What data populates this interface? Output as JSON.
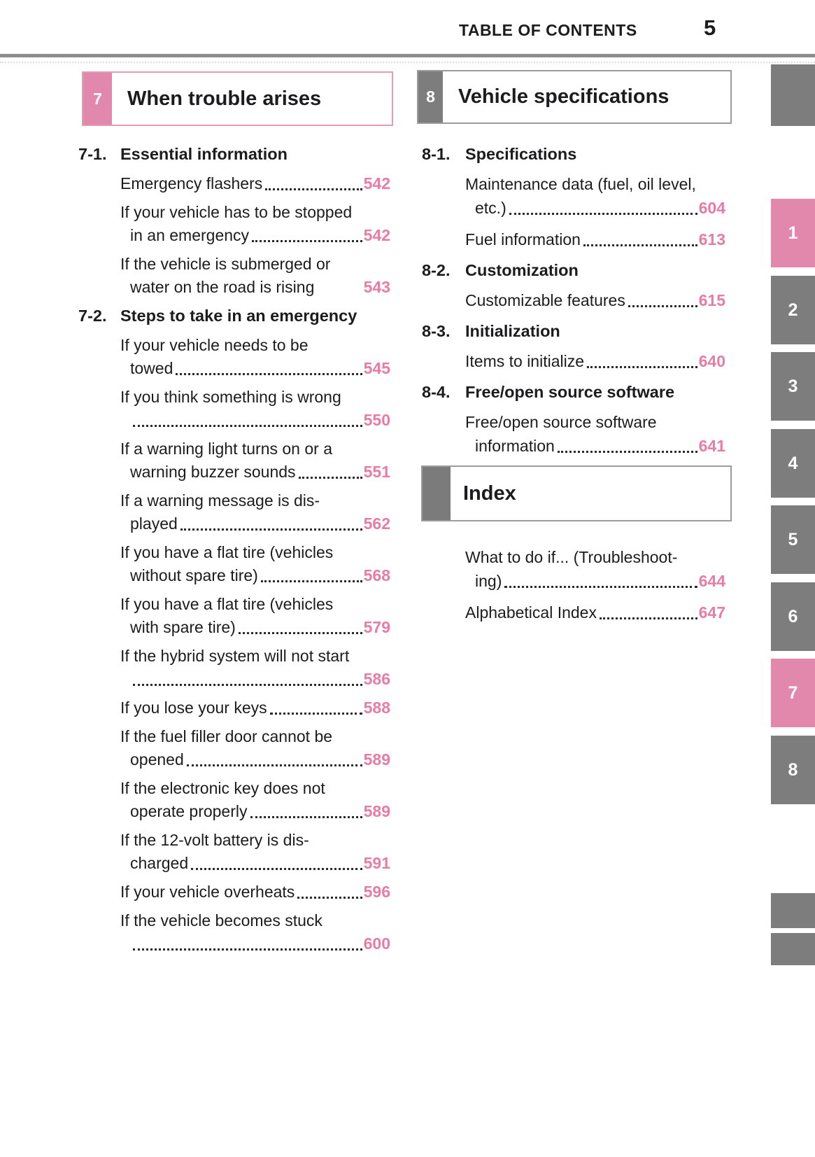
{
  "header": {
    "title": "TABLE OF CONTENTS",
    "page_number": "5"
  },
  "colors": {
    "accent_pink": "#e388ad",
    "page_ref_pink": "#e87ca6",
    "tab_gray": "#7d7d7d",
    "chapter7_border_pink": "#e29ab5",
    "chapter8_border_gray": "#9c9c9c",
    "rule_gray": "#8d8d8d",
    "text_black": "#1c1c1e"
  },
  "columns": {
    "left": {
      "chapter_box": {
        "number": "7",
        "title": "When trouble arises"
      },
      "blocks": [
        {
          "type": "section",
          "number": "7-1.",
          "title": "Essential information"
        },
        {
          "type": "entry",
          "lines": [
            {
              "text": "Emergency flashers",
              "dots": true,
              "page": "542"
            }
          ]
        },
        {
          "type": "entry",
          "lines": [
            {
              "text": "If your vehicle has to be stopped"
            },
            {
              "text": "in an emergency",
              "indent": true,
              "dots": true,
              "page": "542"
            }
          ]
        },
        {
          "type": "entry",
          "lines": [
            {
              "text": "If the vehicle is submerged or"
            },
            {
              "text": "water on the road is rising",
              "indent": true,
              "dots": false,
              "page": "543"
            }
          ]
        },
        {
          "type": "section",
          "number": "7-2.",
          "title": "Steps to take in an emergency"
        },
        {
          "type": "entry",
          "lines": [
            {
              "text": "If your vehicle needs to be"
            },
            {
              "text": "towed",
              "indent": true,
              "dots": true,
              "page": "545"
            }
          ]
        },
        {
          "type": "entry",
          "lines": [
            {
              "text": "If you think something is wrong"
            },
            {
              "text": "",
              "indent": true,
              "dots": true,
              "page": "550"
            }
          ]
        },
        {
          "type": "entry",
          "lines": [
            {
              "text": "If a warning light turns on or a"
            },
            {
              "text": "warning buzzer sounds",
              "indent": true,
              "dots": true,
              "page": "551"
            }
          ]
        },
        {
          "type": "entry",
          "lines": [
            {
              "text": "If a warning message is dis-"
            },
            {
              "text": "played",
              "indent": true,
              "dots": true,
              "page": "562"
            }
          ]
        },
        {
          "type": "entry",
          "lines": [
            {
              "text": "If you have a flat tire (vehicles"
            },
            {
              "text": "without spare tire)",
              "indent": true,
              "dots": true,
              "page": "568"
            }
          ]
        },
        {
          "type": "entry",
          "lines": [
            {
              "text": "If you have a flat tire (vehicles"
            },
            {
              "text": "with spare tire)",
              "indent": true,
              "dots": true,
              "page": "579"
            }
          ]
        },
        {
          "type": "entry",
          "lines": [
            {
              "text": "If the hybrid system will not start"
            },
            {
              "text": "",
              "indent": true,
              "dots": true,
              "page": "586"
            }
          ]
        },
        {
          "type": "entry",
          "lines": [
            {
              "text": "If you lose your keys",
              "dots": true,
              "page": "588"
            }
          ]
        },
        {
          "type": "entry",
          "lines": [
            {
              "text": "If the fuel filler door cannot be"
            },
            {
              "text": "opened",
              "indent": true,
              "dots": true,
              "page": "589"
            }
          ]
        },
        {
          "type": "entry",
          "lines": [
            {
              "text": "If the electronic key does not"
            },
            {
              "text": "operate properly",
              "indent": true,
              "dots": true,
              "page": "589"
            }
          ]
        },
        {
          "type": "entry",
          "lines": [
            {
              "text": "If the 12-volt battery is dis-"
            },
            {
              "text": "charged",
              "indent": true,
              "dots": true,
              "page": "591"
            }
          ]
        },
        {
          "type": "entry",
          "lines": [
            {
              "text": "If your vehicle overheats",
              "dots": true,
              "page": "596"
            }
          ]
        },
        {
          "type": "entry",
          "lines": [
            {
              "text": "If the vehicle becomes stuck"
            },
            {
              "text": "",
              "indent": true,
              "dots": true,
              "page": "600"
            }
          ]
        }
      ]
    },
    "right": {
      "chapter_box": {
        "number": "8",
        "title": "Vehicle specifications"
      },
      "blocks": [
        {
          "type": "section",
          "number": "8-1.",
          "title": "Specifications"
        },
        {
          "type": "entry",
          "lines": [
            {
              "text": "Maintenance data (fuel, oil level,"
            },
            {
              "text": "etc.)",
              "indent": true,
              "dots": true,
              "page": "604"
            }
          ]
        },
        {
          "type": "entry",
          "lines": [
            {
              "text": "Fuel information",
              "dots": true,
              "page": "613"
            }
          ]
        },
        {
          "type": "section",
          "number": "8-2.",
          "title": "Customization"
        },
        {
          "type": "entry",
          "lines": [
            {
              "text": "Customizable features",
              "dots": true,
              "page": "615"
            }
          ]
        },
        {
          "type": "section",
          "number": "8-3.",
          "title": "Initialization"
        },
        {
          "type": "entry",
          "lines": [
            {
              "text": "Items to initialize",
              "dots": true,
              "page": "640"
            }
          ]
        },
        {
          "type": "section",
          "number": "8-4.",
          "title": "Free/open source software"
        },
        {
          "type": "entry",
          "lines": [
            {
              "text": "Free/open source software"
            },
            {
              "text": "information",
              "indent": true,
              "dots": true,
              "page": "641"
            }
          ]
        },
        {
          "type": "index_box",
          "title": "Index"
        },
        {
          "type": "entry",
          "lines": [
            {
              "text": "What to do if... (Troubleshoot-"
            },
            {
              "text": "ing)",
              "indent": true,
              "dots": true,
              "page": "644"
            }
          ]
        },
        {
          "type": "entry",
          "lines": [
            {
              "text": "Alphabetical Index",
              "dots": true,
              "page": "647"
            }
          ]
        }
      ]
    }
  },
  "side_tabs": {
    "top_marker_label": "",
    "items": [
      {
        "label": "1",
        "active": true
      },
      {
        "label": "2",
        "active": false
      },
      {
        "label": "3",
        "active": false
      },
      {
        "label": "4",
        "active": false
      },
      {
        "label": "5",
        "active": false
      },
      {
        "label": "6",
        "active": false
      },
      {
        "label": "7",
        "active": true
      },
      {
        "label": "8",
        "active": false
      }
    ],
    "bottom_marker_labels": [
      "",
      ""
    ]
  }
}
